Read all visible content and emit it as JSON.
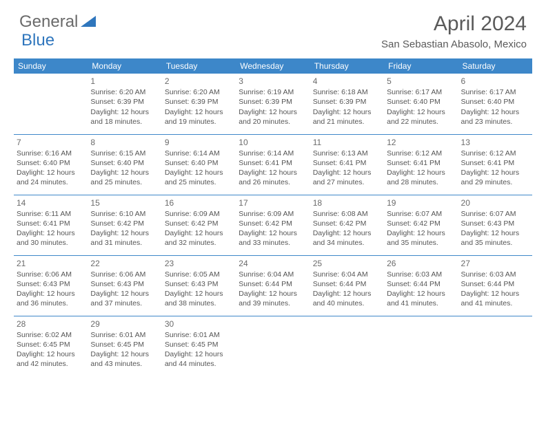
{
  "logo": {
    "text1": "General",
    "text2": "Blue"
  },
  "title": "April 2024",
  "location": "San Sebastian Abasolo, Mexico",
  "colors": {
    "header_bg": "#3d87c9",
    "header_text": "#ffffff",
    "border": "#3d87c9",
    "text": "#555555",
    "title_text": "#5a5a5a",
    "logo_blue": "#2f76bd"
  },
  "weekdays": [
    "Sunday",
    "Monday",
    "Tuesday",
    "Wednesday",
    "Thursday",
    "Friday",
    "Saturday"
  ],
  "first_day_index": 1,
  "days": [
    {
      "n": 1,
      "sr": "6:20 AM",
      "ss": "6:39 PM",
      "dl": "12 hours and 18 minutes."
    },
    {
      "n": 2,
      "sr": "6:20 AM",
      "ss": "6:39 PM",
      "dl": "12 hours and 19 minutes."
    },
    {
      "n": 3,
      "sr": "6:19 AM",
      "ss": "6:39 PM",
      "dl": "12 hours and 20 minutes."
    },
    {
      "n": 4,
      "sr": "6:18 AM",
      "ss": "6:39 PM",
      "dl": "12 hours and 21 minutes."
    },
    {
      "n": 5,
      "sr": "6:17 AM",
      "ss": "6:40 PM",
      "dl": "12 hours and 22 minutes."
    },
    {
      "n": 6,
      "sr": "6:17 AM",
      "ss": "6:40 PM",
      "dl": "12 hours and 23 minutes."
    },
    {
      "n": 7,
      "sr": "6:16 AM",
      "ss": "6:40 PM",
      "dl": "12 hours and 24 minutes."
    },
    {
      "n": 8,
      "sr": "6:15 AM",
      "ss": "6:40 PM",
      "dl": "12 hours and 25 minutes."
    },
    {
      "n": 9,
      "sr": "6:14 AM",
      "ss": "6:40 PM",
      "dl": "12 hours and 25 minutes."
    },
    {
      "n": 10,
      "sr": "6:14 AM",
      "ss": "6:41 PM",
      "dl": "12 hours and 26 minutes."
    },
    {
      "n": 11,
      "sr": "6:13 AM",
      "ss": "6:41 PM",
      "dl": "12 hours and 27 minutes."
    },
    {
      "n": 12,
      "sr": "6:12 AM",
      "ss": "6:41 PM",
      "dl": "12 hours and 28 minutes."
    },
    {
      "n": 13,
      "sr": "6:12 AM",
      "ss": "6:41 PM",
      "dl": "12 hours and 29 minutes."
    },
    {
      "n": 14,
      "sr": "6:11 AM",
      "ss": "6:41 PM",
      "dl": "12 hours and 30 minutes."
    },
    {
      "n": 15,
      "sr": "6:10 AM",
      "ss": "6:42 PM",
      "dl": "12 hours and 31 minutes."
    },
    {
      "n": 16,
      "sr": "6:09 AM",
      "ss": "6:42 PM",
      "dl": "12 hours and 32 minutes."
    },
    {
      "n": 17,
      "sr": "6:09 AM",
      "ss": "6:42 PM",
      "dl": "12 hours and 33 minutes."
    },
    {
      "n": 18,
      "sr": "6:08 AM",
      "ss": "6:42 PM",
      "dl": "12 hours and 34 minutes."
    },
    {
      "n": 19,
      "sr": "6:07 AM",
      "ss": "6:42 PM",
      "dl": "12 hours and 35 minutes."
    },
    {
      "n": 20,
      "sr": "6:07 AM",
      "ss": "6:43 PM",
      "dl": "12 hours and 35 minutes."
    },
    {
      "n": 21,
      "sr": "6:06 AM",
      "ss": "6:43 PM",
      "dl": "12 hours and 36 minutes."
    },
    {
      "n": 22,
      "sr": "6:06 AM",
      "ss": "6:43 PM",
      "dl": "12 hours and 37 minutes."
    },
    {
      "n": 23,
      "sr": "6:05 AM",
      "ss": "6:43 PM",
      "dl": "12 hours and 38 minutes."
    },
    {
      "n": 24,
      "sr": "6:04 AM",
      "ss": "6:44 PM",
      "dl": "12 hours and 39 minutes."
    },
    {
      "n": 25,
      "sr": "6:04 AM",
      "ss": "6:44 PM",
      "dl": "12 hours and 40 minutes."
    },
    {
      "n": 26,
      "sr": "6:03 AM",
      "ss": "6:44 PM",
      "dl": "12 hours and 41 minutes."
    },
    {
      "n": 27,
      "sr": "6:03 AM",
      "ss": "6:44 PM",
      "dl": "12 hours and 41 minutes."
    },
    {
      "n": 28,
      "sr": "6:02 AM",
      "ss": "6:45 PM",
      "dl": "12 hours and 42 minutes."
    },
    {
      "n": 29,
      "sr": "6:01 AM",
      "ss": "6:45 PM",
      "dl": "12 hours and 43 minutes."
    },
    {
      "n": 30,
      "sr": "6:01 AM",
      "ss": "6:45 PM",
      "dl": "12 hours and 44 minutes."
    }
  ],
  "labels": {
    "sunrise": "Sunrise:",
    "sunset": "Sunset:",
    "daylight": "Daylight:"
  }
}
